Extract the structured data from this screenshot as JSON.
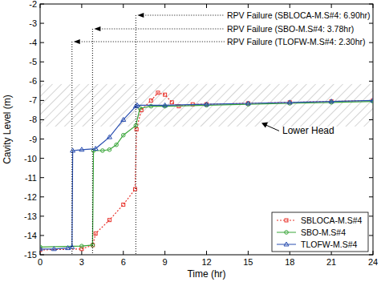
{
  "chart_data": {
    "type": "line",
    "x_label": "Time (hr)",
    "y_label": "Cavity Level (m)",
    "xlim": [
      0,
      24
    ],
    "xticks": [
      0,
      3,
      6,
      9,
      12,
      15,
      18,
      21,
      24
    ],
    "ylim": [
      -15,
      -2
    ],
    "yticks": [
      -15,
      -14,
      -13,
      -12,
      -11,
      -10,
      -9,
      -8,
      -7,
      -6,
      -5,
      -4,
      -3,
      -2
    ],
    "legend": "lower right",
    "series": [
      {
        "name": "SBLOCA-M.S#4",
        "color": "#e8322b",
        "marker": "square",
        "line_style": "dotted",
        "x": [
          0,
          3,
          3.8,
          4,
          5,
          6,
          6.85,
          6.95,
          7.3,
          8,
          8.5,
          9,
          9.5,
          10,
          11,
          12,
          15,
          18,
          21,
          24
        ],
        "values": [
          -14.75,
          -14.7,
          -14.5,
          -13.9,
          -13.2,
          -12.4,
          -11.6,
          -8.5,
          -7.5,
          -7.0,
          -6.6,
          -6.7,
          -7.1,
          -7.3,
          -7.2,
          -7.2,
          -7.15,
          -7.1,
          -7.05,
          -7.0
        ]
      },
      {
        "name": "SBO-M.S#4",
        "color": "#3aa63a",
        "marker": "circle",
        "line_style": "solid",
        "x": [
          0,
          3,
          3.78,
          3.85,
          4.5,
          5,
          5.5,
          6,
          6.9,
          7.2,
          8,
          9,
          12,
          15,
          18,
          21,
          24
        ],
        "values": [
          -14.6,
          -14.55,
          -14.5,
          -9.6,
          -9.6,
          -9.55,
          -9.3,
          -8.8,
          -8.3,
          -7.4,
          -7.3,
          -7.3,
          -7.25,
          -7.2,
          -7.15,
          -7.1,
          -7.05
        ]
      },
      {
        "name": "TLOFW-M.S#4",
        "color": "#2a4fb0",
        "marker": "triangle",
        "line_style": "solid",
        "x": [
          0,
          1,
          2,
          2.3,
          2.35,
          3,
          4,
          5,
          6,
          6.9,
          7,
          9,
          12,
          15,
          18,
          21,
          24
        ],
        "values": [
          -14.7,
          -14.7,
          -14.65,
          -14.6,
          -9.6,
          -9.55,
          -9.5,
          -8.9,
          -8.0,
          -7.3,
          -7.25,
          -7.25,
          -7.2,
          -7.15,
          -7.1,
          -7.05,
          -7.0
        ]
      }
    ],
    "annotations": [
      {
        "text": "RPV Failure (SBLOCA-M.S#4: 6.90hr)",
        "x": 6.9
      },
      {
        "text": "RPV Failure (SBO-M.S#4: 3.78hr)",
        "x": 3.78
      },
      {
        "text": "RPV Failure (TLOFW-M.S#4: 2.30hr)",
        "x": 2.3
      }
    ],
    "band": {
      "label": "Lower Head",
      "range": [
        -8.35,
        -6.15
      ]
    }
  }
}
